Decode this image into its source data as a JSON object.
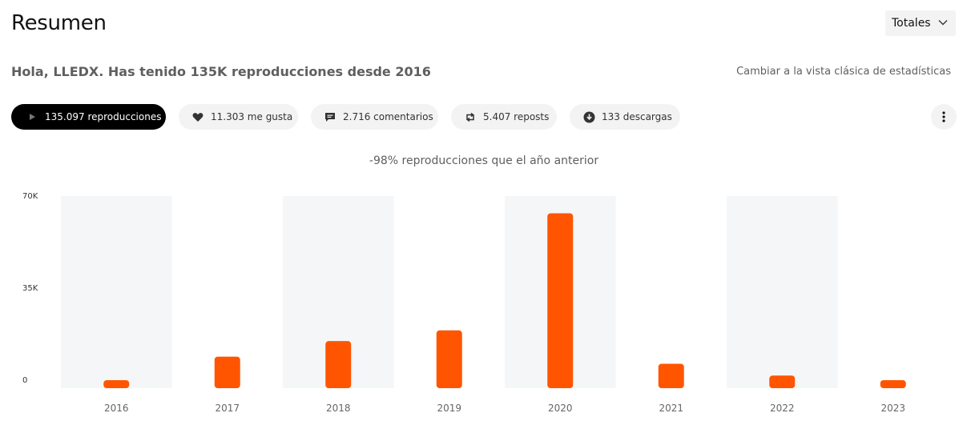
{
  "header": {
    "title": "Resumen",
    "range_label": "Totales"
  },
  "summary": {
    "greeting": "Hola, LLEDX. Has tenido 135K reproducciones desde 2016",
    "classic_link": "Cambiar a la vista clásica de estadísticas"
  },
  "metrics": [
    {
      "label": "135.097 reproducciones",
      "icon": "play-icon",
      "active": true
    },
    {
      "label": "11.303 me gusta",
      "icon": "heart-icon",
      "active": false
    },
    {
      "label": "2.716 comentarios",
      "icon": "comment-icon",
      "active": false
    },
    {
      "label": "5.407 reposts",
      "icon": "repost-icon",
      "active": false
    },
    {
      "label": "133 descargas",
      "icon": "download-icon",
      "active": false
    }
  ],
  "colors": {
    "accent": "#ff5500",
    "band": "#f5f6f7",
    "active_pill": "#000000",
    "pill": "#f3f3f3"
  },
  "chart_data": {
    "type": "bar",
    "subtitle": "-98% reproducciones que el año anterior",
    "categories": [
      "2016",
      "2017",
      "2018",
      "2019",
      "2020",
      "2021",
      "2022",
      "2023"
    ],
    "values": [
      800,
      12000,
      17900,
      22000,
      66500,
      9300,
      4800,
      1100
    ],
    "yticks": [
      "0",
      "35K",
      "70K"
    ],
    "ytick_values": [
      0,
      35000,
      70000
    ],
    "ylim": [
      0,
      70000
    ],
    "grid": false,
    "legend": "none"
  }
}
